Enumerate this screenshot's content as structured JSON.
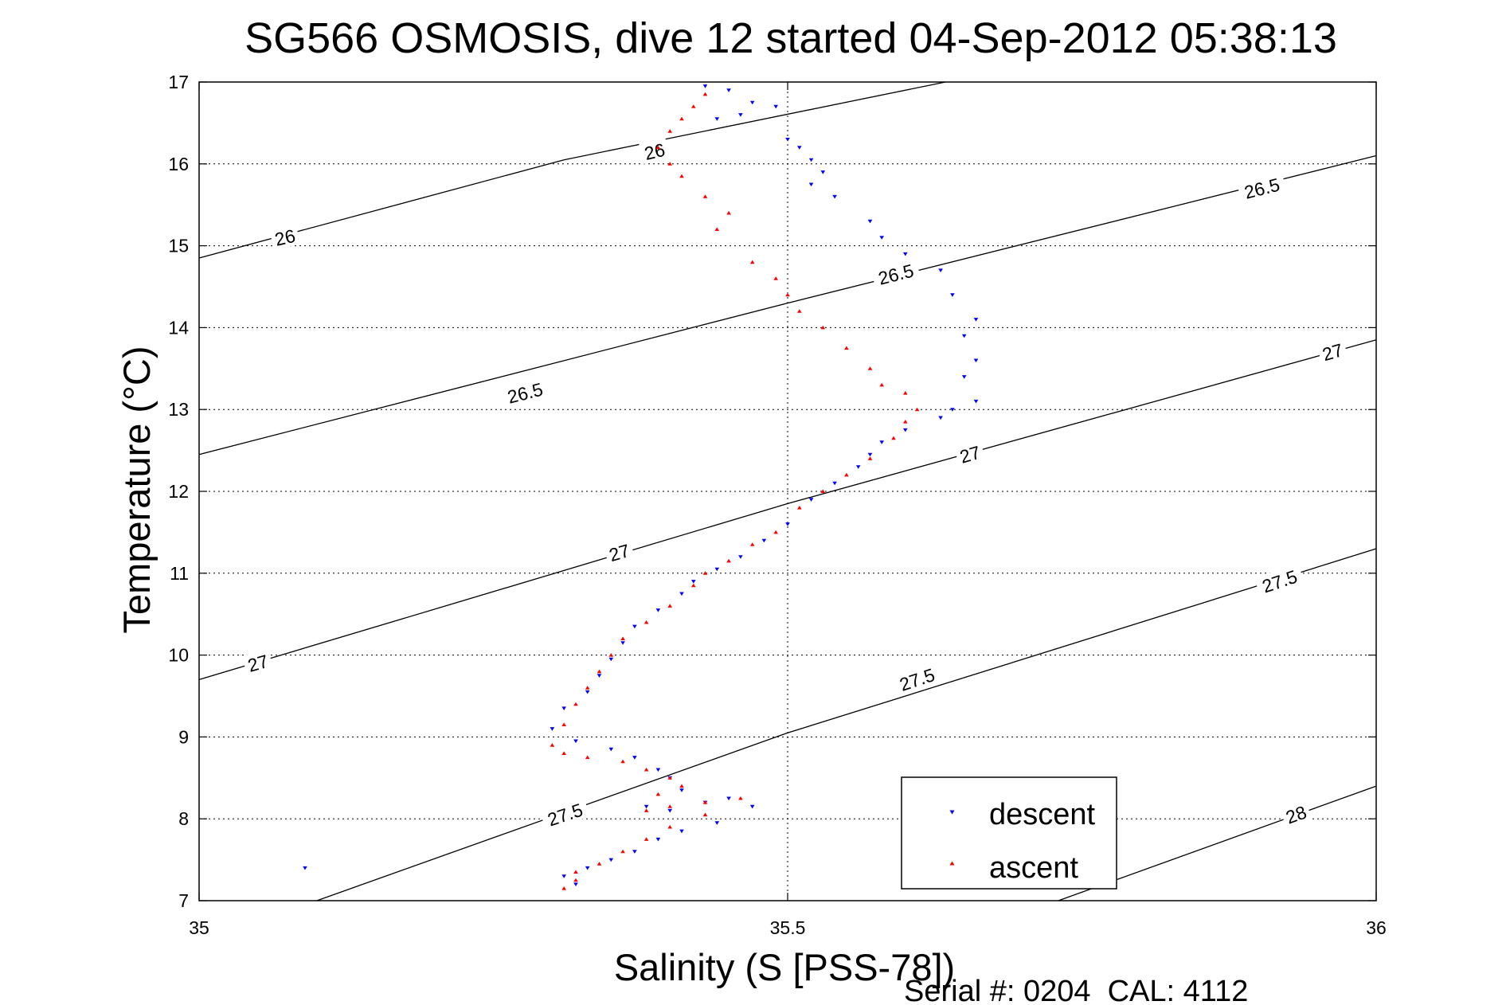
{
  "chart_data": {
    "type": "scatter",
    "title": "SG566 OSMOSIS, dive 12 started 04-Sep-2012 05:38:13",
    "xlabel": "Salinity (S [PSS-78])",
    "ylabel": "Temperature (°C)",
    "footer": "Serial #: 0204  CAL: 4112",
    "xlim": [
      35,
      36
    ],
    "ylim": [
      7,
      17
    ],
    "x_ticks": [
      "35",
      "35.5",
      "36"
    ],
    "y_ticks": [
      "7",
      "8",
      "9",
      "10",
      "11",
      "12",
      "13",
      "14",
      "15",
      "16",
      "17"
    ],
    "grid": true,
    "legend_position": "bottom-right",
    "colors": {
      "descent": "#0000ff",
      "ascent": "#ff0000",
      "contour": "#000000"
    },
    "contours": [
      {
        "label": "26",
        "points": [
          [
            35,
            14.85
          ],
          [
            35.31,
            16.05
          ],
          [
            35.634,
            17
          ]
        ],
        "label_positions": [
          [
            35.073,
            15.1
          ],
          [
            35.387,
            16.15
          ]
        ]
      },
      {
        "label": "26.5",
        "points": [
          [
            35,
            12.45
          ],
          [
            35.5,
            14.3
          ],
          [
            36,
            16.1
          ]
        ],
        "label_positions": [
          [
            35.277,
            13.2
          ],
          [
            35.592,
            14.65
          ],
          [
            35.903,
            15.7
          ]
        ]
      },
      {
        "label": "27",
        "points": [
          [
            35,
            9.7
          ],
          [
            35.5,
            11.85
          ],
          [
            36,
            13.85
          ]
        ],
        "label_positions": [
          [
            35.05,
            9.9
          ],
          [
            35.357,
            11.25
          ],
          [
            35.655,
            12.45
          ],
          [
            35.963,
            13.7
          ]
        ]
      },
      {
        "label": "27.5",
        "points": [
          [
            35.1,
            7
          ],
          [
            35.5,
            9.05
          ],
          [
            36,
            11.3
          ]
        ],
        "label_positions": [
          [
            35.311,
            8.05
          ],
          [
            35.61,
            9.7
          ],
          [
            35.918,
            10.9
          ]
        ]
      },
      {
        "label": "28",
        "points": [
          [
            35.73,
            7
          ],
          [
            36,
            8.4
          ]
        ],
        "label_positions": [
          [
            35.932,
            8.05
          ]
        ]
      }
    ],
    "series": [
      {
        "name": "descent",
        "marker": "triangle-down",
        "color": "#0000ff",
        "x": [
          35.43,
          35.45,
          35.47,
          35.49,
          35.46,
          35.44,
          35.5,
          35.51,
          35.52,
          35.53,
          35.52,
          35.54,
          35.57,
          35.58,
          35.6,
          35.63,
          35.64,
          35.66,
          35.65,
          35.66,
          35.65,
          35.66,
          35.64,
          35.63,
          35.6,
          35.58,
          35.57,
          35.56,
          35.54,
          35.52,
          35.5,
          35.48,
          35.46,
          35.44,
          35.42,
          35.41,
          35.39,
          35.37,
          35.36,
          35.35,
          35.34,
          35.33,
          35.31,
          35.3,
          35.32,
          35.35,
          35.37,
          35.39,
          35.4,
          35.41,
          35.38,
          35.4,
          35.43,
          35.45,
          35.47,
          35.44,
          35.41,
          35.39,
          35.37,
          35.35,
          35.33,
          35.31,
          35.32,
          35.09
        ],
        "y": [
          16.95,
          16.9,
          16.75,
          16.7,
          16.6,
          16.55,
          16.3,
          16.2,
          16.05,
          15.9,
          15.75,
          15.6,
          15.3,
          15.1,
          14.9,
          14.7,
          14.4,
          14.1,
          13.9,
          13.6,
          13.4,
          13.1,
          13,
          12.9,
          12.75,
          12.6,
          12.45,
          12.3,
          12.1,
          11.9,
          11.6,
          11.4,
          11.2,
          11.05,
          10.9,
          10.75,
          10.55,
          10.35,
          10.15,
          9.95,
          9.75,
          9.55,
          9.35,
          9.1,
          8.95,
          8.85,
          8.75,
          8.6,
          8.5,
          8.35,
          8.15,
          8.1,
          8.2,
          8.25,
          8.15,
          7.95,
          7.85,
          7.75,
          7.6,
          7.5,
          7.4,
          7.3,
          7.2,
          7.4
        ]
      },
      {
        "name": "ascent",
        "marker": "triangle-up",
        "color": "#ff0000",
        "x": [
          35.43,
          35.42,
          35.41,
          35.4,
          35.39,
          35.4,
          35.41,
          35.43,
          35.45,
          35.44,
          35.47,
          35.49,
          35.5,
          35.51,
          35.53,
          35.55,
          35.57,
          35.58,
          35.6,
          35.61,
          35.6,
          35.59,
          35.57,
          35.55,
          35.53,
          35.51,
          35.49,
          35.47,
          35.45,
          35.43,
          35.42,
          35.4,
          35.38,
          35.36,
          35.35,
          35.34,
          35.33,
          35.32,
          35.31,
          35.3,
          35.31,
          35.33,
          35.36,
          35.38,
          35.4,
          35.41,
          35.39,
          35.38,
          35.4,
          35.43,
          35.46,
          35.43,
          35.4,
          35.38,
          35.36,
          35.34,
          35.32,
          35.32,
          35.31
        ],
        "y": [
          16.85,
          16.7,
          16.55,
          16.4,
          16.2,
          16,
          15.85,
          15.6,
          15.4,
          15.2,
          14.8,
          14.6,
          14.4,
          14.2,
          14,
          13.75,
          13.5,
          13.3,
          13.2,
          13,
          12.85,
          12.65,
          12.4,
          12.2,
          12,
          11.8,
          11.5,
          11.35,
          11.15,
          11,
          10.85,
          10.6,
          10.4,
          10.2,
          10,
          9.8,
          9.6,
          9.4,
          9.15,
          8.9,
          8.8,
          8.75,
          8.7,
          8.6,
          8.5,
          8.4,
          8.3,
          8.1,
          8.15,
          8.2,
          8.25,
          8.05,
          7.9,
          7.75,
          7.6,
          7.45,
          7.35,
          7.25,
          7.15
        ]
      }
    ]
  }
}
